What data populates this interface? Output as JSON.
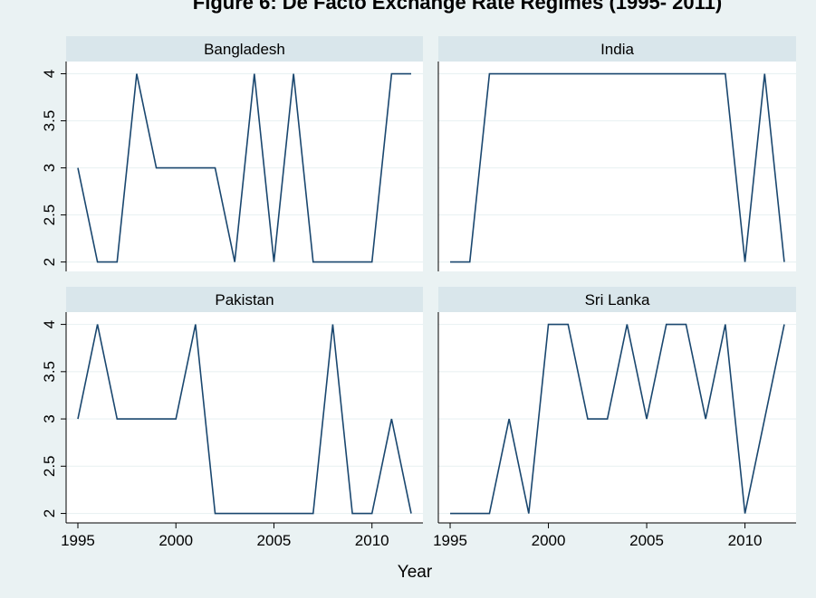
{
  "title": "Figure 6: De Facto Exchange Rate Regimes (1995- 2011)",
  "x_label": "Year",
  "chart_data": [
    {
      "type": "line",
      "title": "Bangladesh",
      "color": "#1a476f",
      "grid": true,
      "x": [
        1995,
        1996,
        1997,
        1998,
        1999,
        2000,
        2001,
        2002,
        2003,
        2004,
        2005,
        2006,
        2007,
        2008,
        2009,
        2010,
        2011,
        2012
      ],
      "values": [
        3,
        2,
        2,
        4,
        3,
        3,
        3,
        3,
        2,
        4,
        2,
        4,
        2,
        2,
        2,
        2,
        4,
        4
      ],
      "xlim": [
        1994.4,
        2012.6
      ],
      "ylim": [
        1.9,
        4.13
      ],
      "yticks": [
        2,
        2.5,
        3,
        3.5,
        4
      ]
    },
    {
      "type": "line",
      "title": "India",
      "color": "#1a476f",
      "grid": true,
      "x": [
        1995,
        1996,
        1997,
        1998,
        1999,
        2000,
        2001,
        2002,
        2003,
        2004,
        2005,
        2006,
        2007,
        2008,
        2009,
        2010,
        2011,
        2012
      ],
      "values": [
        2,
        2,
        4,
        4,
        4,
        4,
        4,
        4,
        4,
        4,
        4,
        4,
        4,
        4,
        4,
        2,
        4,
        2
      ],
      "xlim": [
        1994.4,
        2012.6
      ],
      "ylim": [
        1.9,
        4.13
      ]
    },
    {
      "type": "line",
      "title": "Pakistan",
      "color": "#1a476f",
      "grid": true,
      "x": [
        1995,
        1996,
        1997,
        1998,
        1999,
        2000,
        2001,
        2002,
        2003,
        2004,
        2005,
        2006,
        2007,
        2008,
        2009,
        2010,
        2011,
        2012
      ],
      "values": [
        3,
        4,
        3,
        3,
        3,
        3,
        4,
        2,
        2,
        2,
        2,
        2,
        2,
        4,
        2,
        2,
        3,
        2
      ],
      "xlim": [
        1994.4,
        2012.6
      ],
      "ylim": [
        1.9,
        4.13
      ],
      "yticks": [
        2,
        2.5,
        3,
        3.5,
        4
      ],
      "xticks": [
        1995,
        2000,
        2005,
        2010
      ]
    },
    {
      "type": "line",
      "title": "Sri Lanka",
      "color": "#1a476f",
      "grid": true,
      "x": [
        1995,
        1996,
        1997,
        1998,
        1999,
        2000,
        2001,
        2002,
        2003,
        2004,
        2005,
        2006,
        2007,
        2008,
        2009,
        2010,
        2011,
        2012
      ],
      "values": [
        2,
        2,
        2,
        3,
        2,
        4,
        4,
        3,
        3,
        4,
        3,
        4,
        4,
        3,
        4,
        2,
        3,
        4
      ],
      "xlim": [
        1994.4,
        2012.6
      ],
      "ylim": [
        1.9,
        4.13
      ],
      "xticks": [
        1995,
        2000,
        2005,
        2010
      ]
    }
  ]
}
